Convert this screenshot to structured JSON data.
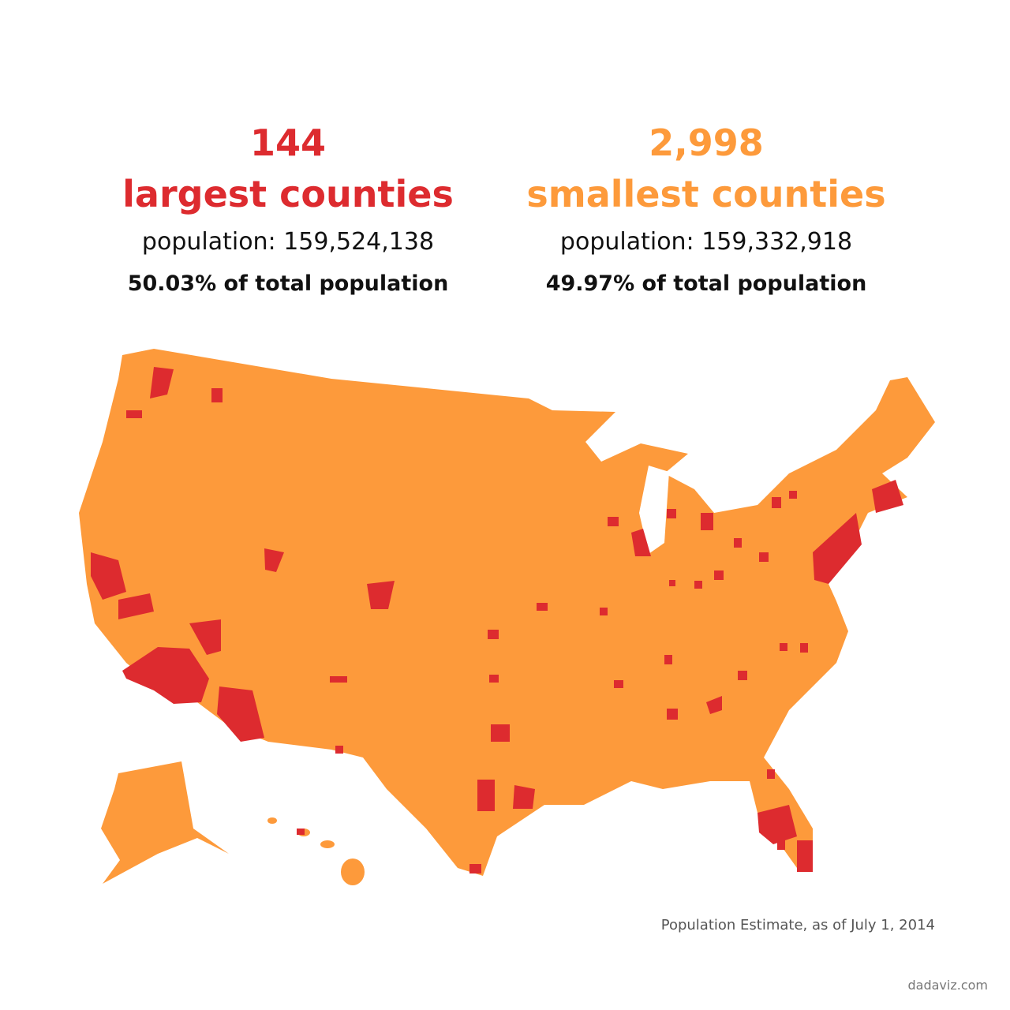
{
  "left": {
    "count": "144",
    "label": "largest counties",
    "population": "population: 159,524,138",
    "share": "50.03% of total population"
  },
  "right": {
    "count": "2,998",
    "label": "smallest counties",
    "population": "population: 159,332,918",
    "share": "49.97% of total population"
  },
  "source": "Population Estimate, as of July 1, 2014",
  "credit": "dadaviz.com"
}
